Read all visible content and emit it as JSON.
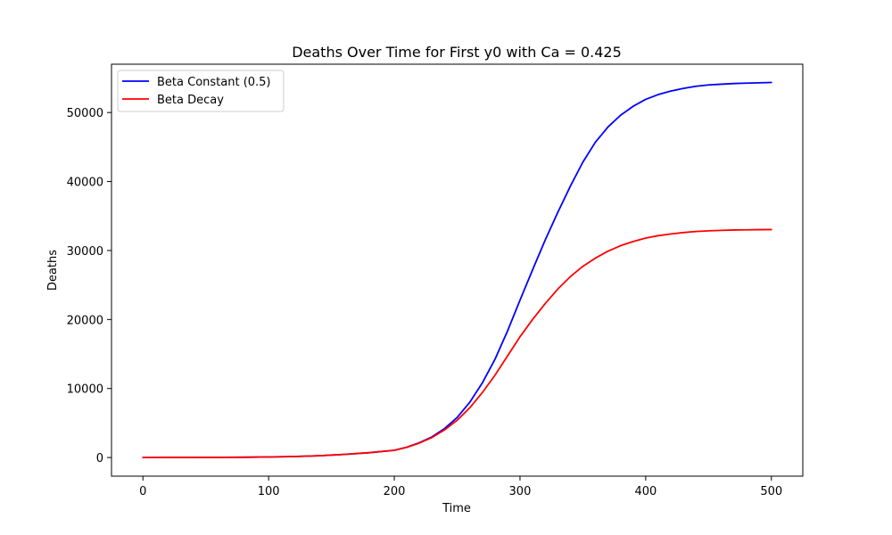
{
  "chart_data": {
    "type": "line",
    "title": "Deaths Over Time for First y0 with Ca = 0.425",
    "xlabel": "Time",
    "ylabel": "Deaths",
    "xlim": [
      -25,
      525
    ],
    "ylim": [
      -2700,
      57000
    ],
    "x_ticks": [
      0,
      100,
      200,
      300,
      400,
      500
    ],
    "y_ticks": [
      0,
      10000,
      20000,
      30000,
      40000,
      50000
    ],
    "grid": false,
    "legend_position": "top-left",
    "x": [
      0,
      20,
      40,
      60,
      80,
      100,
      120,
      140,
      160,
      180,
      200,
      210,
      220,
      230,
      240,
      250,
      260,
      270,
      280,
      290,
      300,
      310,
      320,
      330,
      340,
      350,
      360,
      370,
      380,
      390,
      400,
      410,
      420,
      430,
      440,
      450,
      460,
      470,
      480,
      490,
      500
    ],
    "series": [
      {
        "name": "Beta Constant (0.5)",
        "color": "#0000ff",
        "values": [
          0,
          3,
          8,
          20,
          40,
          75,
          140,
          260,
          450,
          700,
          1050,
          1500,
          2150,
          3000,
          4200,
          5800,
          8000,
          10800,
          14200,
          18300,
          22800,
          27200,
          31500,
          35500,
          39300,
          42800,
          45700,
          47900,
          49600,
          50900,
          51900,
          52600,
          53100,
          53500,
          53800,
          54000,
          54100,
          54200,
          54250,
          54300,
          54350
        ]
      },
      {
        "name": "Beta Decay",
        "color": "#ff0000",
        "values": [
          0,
          3,
          8,
          20,
          40,
          75,
          140,
          260,
          450,
          700,
          1050,
          1480,
          2100,
          2900,
          4000,
          5400,
          7200,
          9400,
          11900,
          14700,
          17500,
          20000,
          22300,
          24400,
          26200,
          27700,
          28900,
          29900,
          30700,
          31300,
          31800,
          32150,
          32400,
          32600,
          32750,
          32850,
          32920,
          32970,
          33000,
          33020,
          33040
        ]
      }
    ]
  }
}
